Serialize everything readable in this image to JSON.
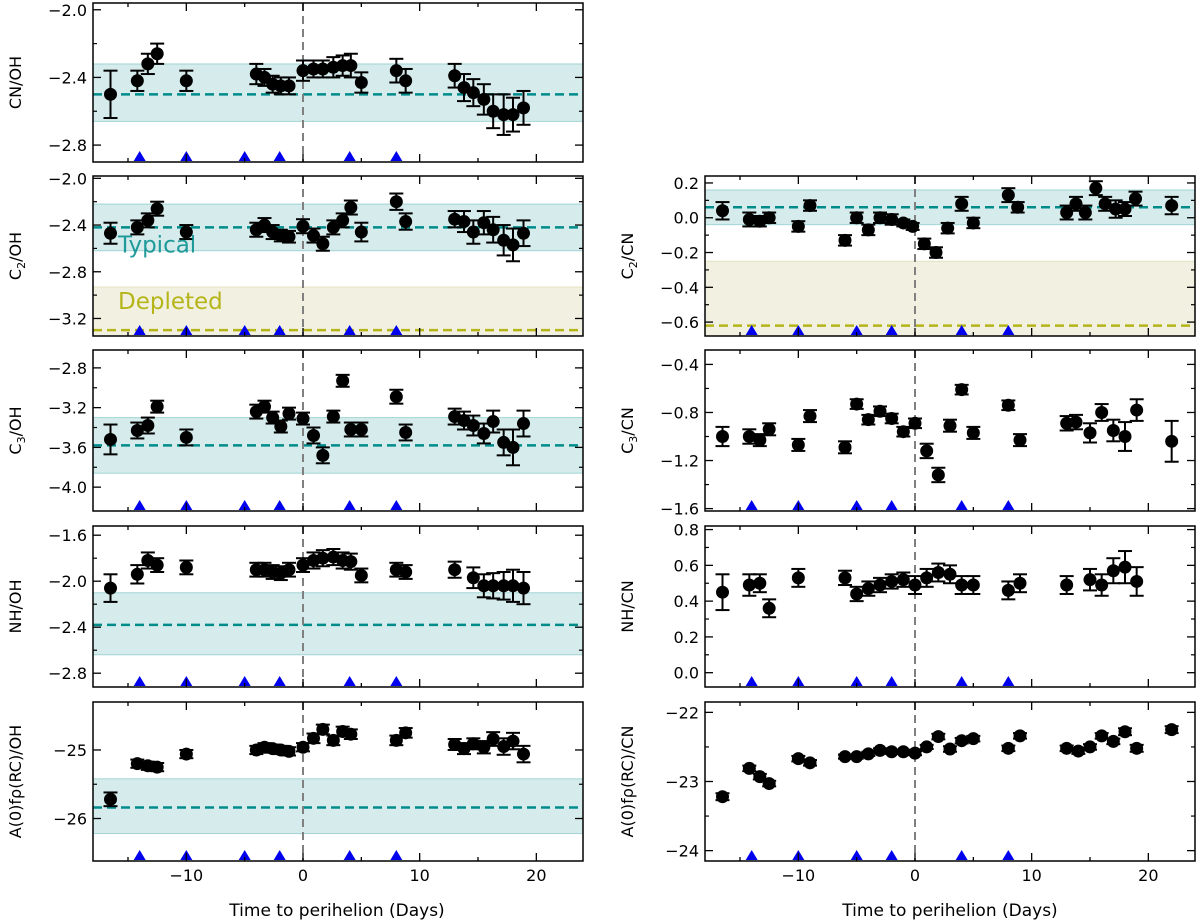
{
  "figure": {
    "colors": {
      "typical_band": "#008b8b",
      "typical_line": "#008b8b",
      "depleted_band": "#bdb76b",
      "depleted_line": "#b5b51a",
      "perihelion_line": "#808080",
      "marker": "#000000",
      "triangle": "#0000ee"
    },
    "band_labels": {
      "typical": "Typical",
      "depleted": "Depleted"
    },
    "xlabel": "Time to perihelion (Days)"
  },
  "chart_data": [
    {
      "id": "cn-oh",
      "type": "scatter",
      "ylabel": "CN/OH",
      "ylabel_sub": "",
      "xlim": [
        -18,
        24
      ],
      "ylim": [
        -2.9,
        -1.96
      ],
      "xticks": [
        -10,
        0,
        10,
        20
      ],
      "xticklabels": [
        "",
        "",
        "",
        ""
      ],
      "yticks": [
        -2.8,
        -2.4,
        -2.0
      ],
      "yticklabels": [
        "−2.8",
        "−2.4",
        "−2.0"
      ],
      "typical": {
        "line": -2.5,
        "band": [
          -2.66,
          -2.32
        ]
      },
      "triangles": [
        -14,
        -10,
        -5,
        -2,
        4,
        8
      ],
      "x": [
        -16.5,
        -14.2,
        -13.3,
        -12.5,
        -10,
        -4,
        -3.3,
        -2.6,
        -1.9,
        -1.2,
        0,
        0.9,
        1.7,
        2.6,
        3.4,
        4.1,
        5,
        8,
        8.8,
        13,
        13.8,
        14.6,
        15.5,
        16.3,
        17.2,
        18,
        18.9
      ],
      "y": [
        -2.5,
        -2.42,
        -2.32,
        -2.26,
        -2.42,
        -2.38,
        -2.4,
        -2.44,
        -2.45,
        -2.45,
        -2.36,
        -2.35,
        -2.35,
        -2.34,
        -2.33,
        -2.33,
        -2.43,
        -2.36,
        -2.42,
        -2.39,
        -2.46,
        -2.49,
        -2.53,
        -2.6,
        -2.62,
        -2.62,
        -2.58
      ],
      "err": [
        0.14,
        0.06,
        0.06,
        0.06,
        0.06,
        0.06,
        0.05,
        0.05,
        0.05,
        0.05,
        0.06,
        0.05,
        0.05,
        0.06,
        0.06,
        0.07,
        0.06,
        0.07,
        0.07,
        0.07,
        0.08,
        0.08,
        0.09,
        0.1,
        0.12,
        0.1,
        0.1
      ]
    },
    {
      "id": "c2-oh",
      "type": "scatter",
      "ylabel": "C",
      "ylabel_sub": "2",
      "ylabel_tail": "/OH",
      "xlim": [
        -18,
        24
      ],
      "ylim": [
        -3.35,
        -1.98
      ],
      "xticks": [
        -10,
        0,
        10,
        20
      ],
      "xticklabels": [
        "",
        "",
        "",
        ""
      ],
      "yticks": [
        -3.2,
        -2.8,
        -2.4,
        -2.0
      ],
      "yticklabels": [
        "−3.2",
        "−2.8",
        "−2.4",
        "−2.0"
      ],
      "typical": {
        "line": -2.42,
        "band": [
          -2.62,
          -2.22
        ]
      },
      "depleted": {
        "line": -3.3,
        "band": [
          -3.35,
          -2.93
        ]
      },
      "triangles": [
        -14,
        -10,
        -5,
        -2,
        4,
        8
      ],
      "x": [
        -16.5,
        -14.2,
        -13.3,
        -12.5,
        -10,
        -4,
        -3.3,
        -2.6,
        -1.9,
        -1.2,
        0,
        0.9,
        1.7,
        2.6,
        3.4,
        4.1,
        5,
        8,
        8.8,
        13,
        13.8,
        14.6,
        15.5,
        16.3,
        17.2,
        18,
        18.9
      ],
      "y": [
        -2.47,
        -2.42,
        -2.36,
        -2.26,
        -2.46,
        -2.44,
        -2.4,
        -2.46,
        -2.49,
        -2.5,
        -2.41,
        -2.49,
        -2.56,
        -2.42,
        -2.36,
        -2.25,
        -2.46,
        -2.2,
        -2.37,
        -2.35,
        -2.37,
        -2.46,
        -2.38,
        -2.44,
        -2.53,
        -2.57,
        -2.47
      ],
      "err": [
        0.09,
        0.06,
        0.06,
        0.06,
        0.06,
        0.06,
        0.06,
        0.06,
        0.05,
        0.05,
        0.06,
        0.06,
        0.06,
        0.06,
        0.06,
        0.06,
        0.08,
        0.07,
        0.07,
        0.07,
        0.09,
        0.1,
        0.1,
        0.11,
        0.13,
        0.14,
        0.11
      ]
    },
    {
      "id": "c3-oh",
      "type": "scatter",
      "ylabel": "C",
      "ylabel_sub": "3",
      "ylabel_tail": "/OH",
      "xlim": [
        -18,
        24
      ],
      "ylim": [
        -4.24,
        -2.62
      ],
      "xticks": [
        -10,
        0,
        10,
        20
      ],
      "xticklabels": [
        "",
        "",
        "",
        ""
      ],
      "yticks": [
        -4.0,
        -3.6,
        -3.2,
        -2.8
      ],
      "yticklabels": [
        "−4.0",
        "−3.6",
        "−3.2",
        "−2.8"
      ],
      "typical": {
        "line": -3.58,
        "band": [
          -3.86,
          -3.3
        ]
      },
      "triangles": [
        -14,
        -10,
        -5,
        -2,
        4,
        8
      ],
      "x": [
        -16.5,
        -14.2,
        -13.3,
        -12.5,
        -10,
        -4,
        -3.3,
        -2.6,
        -1.9,
        -1.2,
        0,
        0.9,
        1.7,
        2.6,
        3.4,
        4.1,
        5,
        8,
        8.8,
        13,
        13.8,
        14.6,
        15.5,
        16.3,
        17.2,
        18,
        18.9
      ],
      "y": [
        -3.52,
        -3.43,
        -3.38,
        -3.19,
        -3.5,
        -3.24,
        -3.19,
        -3.3,
        -3.39,
        -3.26,
        -3.31,
        -3.48,
        -3.68,
        -3.29,
        -2.93,
        -3.42,
        -3.42,
        -3.09,
        -3.45,
        -3.29,
        -3.33,
        -3.38,
        -3.46,
        -3.34,
        -3.55,
        -3.6,
        -3.36
      ],
      "err": [
        0.15,
        0.08,
        0.08,
        0.06,
        0.08,
        0.07,
        0.06,
        0.06,
        0.06,
        0.06,
        0.06,
        0.08,
        0.08,
        0.06,
        0.06,
        0.07,
        0.07,
        0.07,
        0.08,
        0.08,
        0.09,
        0.1,
        0.1,
        0.11,
        0.13,
        0.18,
        0.13
      ]
    },
    {
      "id": "nh-oh",
      "type": "scatter",
      "ylabel": "NH/OH",
      "ylabel_sub": "",
      "xlim": [
        -18,
        24
      ],
      "ylim": [
        -2.92,
        -1.52
      ],
      "xticks": [
        -10,
        0,
        10,
        20
      ],
      "xticklabels": [
        "",
        "",
        "",
        ""
      ],
      "yticks": [
        -2.8,
        -2.4,
        -2.0,
        -1.6
      ],
      "yticklabels": [
        "−2.8",
        "−2.4",
        "−2.0",
        "−1.6"
      ],
      "typical": {
        "line": -2.38,
        "band": [
          -2.64,
          -2.1
        ]
      },
      "triangles": [
        -14,
        -10,
        -5,
        -2,
        4,
        8
      ],
      "x": [
        -16.5,
        -14.2,
        -13.3,
        -12.5,
        -10,
        -4,
        -3.3,
        -2.6,
        -1.9,
        -1.2,
        0,
        0.9,
        1.7,
        2.6,
        3.4,
        4.1,
        5,
        8,
        8.8,
        13,
        14.6,
        15.5,
        16.3,
        17.2,
        18,
        18.9
      ],
      "y": [
        -2.06,
        -1.94,
        -1.82,
        -1.86,
        -1.88,
        -1.9,
        -1.9,
        -1.92,
        -1.93,
        -1.9,
        -1.86,
        -1.82,
        -1.8,
        -1.79,
        -1.82,
        -1.83,
        -1.95,
        -1.9,
        -1.92,
        -1.9,
        -1.97,
        -2.04,
        -2.04,
        -2.04,
        -2.04,
        -2.06
      ],
      "err": [
        0.12,
        0.08,
        0.07,
        0.06,
        0.06,
        0.06,
        0.06,
        0.06,
        0.06,
        0.06,
        0.06,
        0.07,
        0.07,
        0.07,
        0.07,
        0.07,
        0.06,
        0.06,
        0.06,
        0.07,
        0.09,
        0.1,
        0.11,
        0.12,
        0.14,
        0.14
      ]
    },
    {
      "id": "afrho-oh",
      "type": "scatter",
      "ylabel": "A(0)fρ(RC)/OH",
      "ylabel_sub": "",
      "xlim": [
        -18,
        24
      ],
      "ylim": [
        -26.62,
        -24.3
      ],
      "xticks": [
        -10,
        0,
        10,
        20
      ],
      "xticklabels": [
        "−10",
        "0",
        "10",
        "20"
      ],
      "yticks": [
        -26,
        -25
      ],
      "yticklabels": [
        "−26",
        "−25"
      ],
      "typical": {
        "line": -25.84,
        "band": [
          -26.22,
          -25.42
        ]
      },
      "triangles": [
        -14,
        -10,
        -5,
        -2,
        4,
        8
      ],
      "x": [
        -16.5,
        -14.2,
        -13.3,
        -12.5,
        -10,
        -4,
        -3.3,
        -2.6,
        -1.9,
        -1.2,
        0,
        0.9,
        1.7,
        2.6,
        3.4,
        4.1,
        8,
        8.8,
        13,
        13.8,
        14.6,
        15.5,
        16.3,
        17.2,
        18,
        18.9
      ],
      "y": [
        -25.72,
        -25.2,
        -25.23,
        -25.25,
        -25.06,
        -25.0,
        -24.96,
        -24.98,
        -25.0,
        -25.02,
        -24.96,
        -24.83,
        -24.7,
        -24.86,
        -24.73,
        -24.77,
        -24.86,
        -24.75,
        -24.92,
        -24.98,
        -24.91,
        -24.96,
        -24.84,
        -24.95,
        -24.87,
        -25.06
      ],
      "err": [
        0.1,
        0.06,
        0.06,
        0.06,
        0.06,
        0.06,
        0.06,
        0.06,
        0.06,
        0.06,
        0.06,
        0.07,
        0.07,
        0.07,
        0.07,
        0.07,
        0.07,
        0.07,
        0.08,
        0.08,
        0.08,
        0.09,
        0.1,
        0.12,
        0.12,
        0.12
      ]
    },
    {
      "id": "c2-cn",
      "type": "scatter",
      "ylabel": "C",
      "ylabel_sub": "2",
      "ylabel_tail": "/CN",
      "xlim": [
        -18,
        24
      ],
      "ylim": [
        -0.68,
        0.24
      ],
      "xticks": [
        -10,
        0,
        10,
        20
      ],
      "xticklabels": [
        "",
        "",
        "",
        ""
      ],
      "yticks": [
        -0.6,
        -0.4,
        -0.2,
        0.0,
        0.2
      ],
      "yticklabels": [
        "−0.6",
        "−0.4",
        "−0.2",
        "0.0",
        "0.2"
      ],
      "typical": {
        "line": 0.06,
        "band": [
          -0.04,
          0.16
        ]
      },
      "depleted": {
        "line": -0.62,
        "band": [
          -0.68,
          -0.25
        ]
      },
      "triangles": [
        -14,
        -10,
        -5,
        -2,
        4,
        8
      ],
      "x": [
        -16.5,
        -14.2,
        -13.3,
        -12.5,
        -10,
        -9,
        -6,
        -5,
        -4,
        -3,
        -2,
        -1,
        -0.2,
        0.8,
        1.8,
        2.8,
        4,
        5,
        8,
        8.8,
        13,
        13.8,
        14.6,
        15.5,
        16.3,
        17.2,
        18,
        18.9,
        22
      ],
      "y": [
        0.04,
        -0.01,
        -0.02,
        0.0,
        -0.05,
        0.07,
        -0.13,
        0.0,
        -0.07,
        0.0,
        -0.01,
        -0.03,
        -0.05,
        -0.15,
        -0.2,
        -0.06,
        0.08,
        -0.03,
        0.13,
        0.06,
        0.03,
        0.08,
        0.03,
        0.17,
        0.08,
        0.05,
        0.05,
        0.11,
        0.07
      ],
      "err": [
        0.05,
        0.04,
        0.03,
        0.03,
        0.03,
        0.03,
        0.03,
        0.03,
        0.03,
        0.03,
        0.03,
        0.02,
        0.02,
        0.03,
        0.03,
        0.03,
        0.04,
        0.03,
        0.04,
        0.03,
        0.04,
        0.04,
        0.04,
        0.04,
        0.04,
        0.05,
        0.04,
        0.04,
        0.05
      ]
    },
    {
      "id": "c3-cn",
      "type": "scatter",
      "ylabel": "C",
      "ylabel_sub": "3",
      "ylabel_tail": "/CN",
      "xlim": [
        -18,
        24
      ],
      "ylim": [
        -1.62,
        -0.28
      ],
      "xticks": [
        -10,
        0,
        10,
        20
      ],
      "xticklabels": [
        "",
        "",
        "",
        ""
      ],
      "yticks": [
        -1.6,
        -1.2,
        -0.8,
        -0.4
      ],
      "yticklabels": [
        "−1.6",
        "−1.2",
        "−0.8",
        "−0.4"
      ],
      "triangles": [
        -14,
        -10,
        -5,
        -2,
        4,
        8
      ],
      "x": [
        -16.5,
        -14.2,
        -13.3,
        -12.5,
        -10,
        -9,
        -6,
        -5,
        -4,
        -3,
        -2,
        -1,
        0,
        1,
        2,
        3,
        4,
        5,
        8,
        9,
        13,
        13.8,
        15,
        16,
        17,
        18,
        19,
        22
      ],
      "y": [
        -1.0,
        -1.0,
        -1.03,
        -0.94,
        -1.07,
        -0.83,
        -1.09,
        -0.73,
        -0.86,
        -0.79,
        -0.85,
        -0.96,
        -0.89,
        -1.12,
        -1.32,
        -0.91,
        -0.61,
        -0.97,
        -0.74,
        -1.03,
        -0.89,
        -0.88,
        -0.97,
        -0.8,
        -0.95,
        -1.0,
        -0.78,
        -1.04
      ],
      "err": [
        0.08,
        0.06,
        0.05,
        0.05,
        0.05,
        0.05,
        0.05,
        0.04,
        0.04,
        0.04,
        0.04,
        0.04,
        0.04,
        0.06,
        0.06,
        0.05,
        0.04,
        0.05,
        0.04,
        0.05,
        0.06,
        0.06,
        0.08,
        0.07,
        0.09,
        0.12,
        0.09,
        0.17
      ]
    },
    {
      "id": "nh-cn",
      "type": "scatter",
      "ylabel": "NH/CN",
      "ylabel_sub": "",
      "xlim": [
        -18,
        24
      ],
      "ylim": [
        -0.08,
        0.82
      ],
      "xticks": [
        -10,
        0,
        10,
        20
      ],
      "xticklabels": [
        "",
        "",
        "",
        ""
      ],
      "yticks": [
        0.0,
        0.2,
        0.4,
        0.6,
        0.8
      ],
      "yticklabels": [
        "0.0",
        "0.2",
        "0.4",
        "0.6",
        "0.8"
      ],
      "triangles": [
        -14,
        -10,
        -5,
        -2,
        4,
        8
      ],
      "x": [
        -16.5,
        -14.2,
        -13.3,
        -12.5,
        -10,
        -6,
        -5,
        -4,
        -3,
        -2,
        -1,
        0,
        1,
        2,
        3,
        4,
        5,
        8,
        9,
        13,
        15,
        16,
        17,
        18,
        19
      ],
      "y": [
        0.45,
        0.49,
        0.5,
        0.36,
        0.53,
        0.53,
        0.44,
        0.47,
        0.49,
        0.51,
        0.52,
        0.49,
        0.53,
        0.56,
        0.55,
        0.49,
        0.49,
        0.46,
        0.5,
        0.49,
        0.52,
        0.49,
        0.57,
        0.59,
        0.51
      ],
      "err": [
        0.1,
        0.06,
        0.05,
        0.05,
        0.05,
        0.04,
        0.04,
        0.04,
        0.04,
        0.04,
        0.04,
        0.05,
        0.05,
        0.05,
        0.05,
        0.05,
        0.05,
        0.05,
        0.05,
        0.05,
        0.06,
        0.06,
        0.07,
        0.09,
        0.08
      ]
    },
    {
      "id": "afrho-cn",
      "type": "scatter",
      "ylabel": "A(0)fρ(RC)/CN",
      "ylabel_sub": "",
      "xlim": [
        -18,
        24
      ],
      "ylim": [
        -24.15,
        -21.85
      ],
      "xticks": [
        -10,
        0,
        10,
        20
      ],
      "xticklabels": [
        "−10",
        "0",
        "10",
        "20"
      ],
      "yticks": [
        -24,
        -23,
        -22
      ],
      "yticklabels": [
        "−24",
        "−23",
        "−22"
      ],
      "triangles": [
        -14,
        -10,
        -5,
        -2,
        4,
        8
      ],
      "x": [
        -16.5,
        -14.2,
        -13.3,
        -12.5,
        -10,
        -9,
        -6,
        -5,
        -4,
        -3,
        -2,
        -1,
        0,
        1,
        2,
        3,
        4,
        5,
        8,
        9,
        13,
        14,
        15,
        16,
        17,
        18,
        19,
        22
      ],
      "y": [
        -23.22,
        -22.81,
        -22.93,
        -23.03,
        -22.67,
        -22.73,
        -22.64,
        -22.64,
        -22.6,
        -22.55,
        -22.57,
        -22.57,
        -22.59,
        -22.5,
        -22.35,
        -22.53,
        -22.41,
        -22.38,
        -22.52,
        -22.34,
        -22.52,
        -22.56,
        -22.5,
        -22.34,
        -22.42,
        -22.28,
        -22.52,
        -22.25
      ],
      "err": [
        0.05,
        0.04,
        0.04,
        0.04,
        0.04,
        0.04,
        0.03,
        0.03,
        0.03,
        0.03,
        0.03,
        0.03,
        0.03,
        0.03,
        0.04,
        0.04,
        0.04,
        0.04,
        0.04,
        0.04,
        0.04,
        0.04,
        0.04,
        0.04,
        0.04,
        0.05,
        0.05,
        0.05
      ]
    }
  ]
}
